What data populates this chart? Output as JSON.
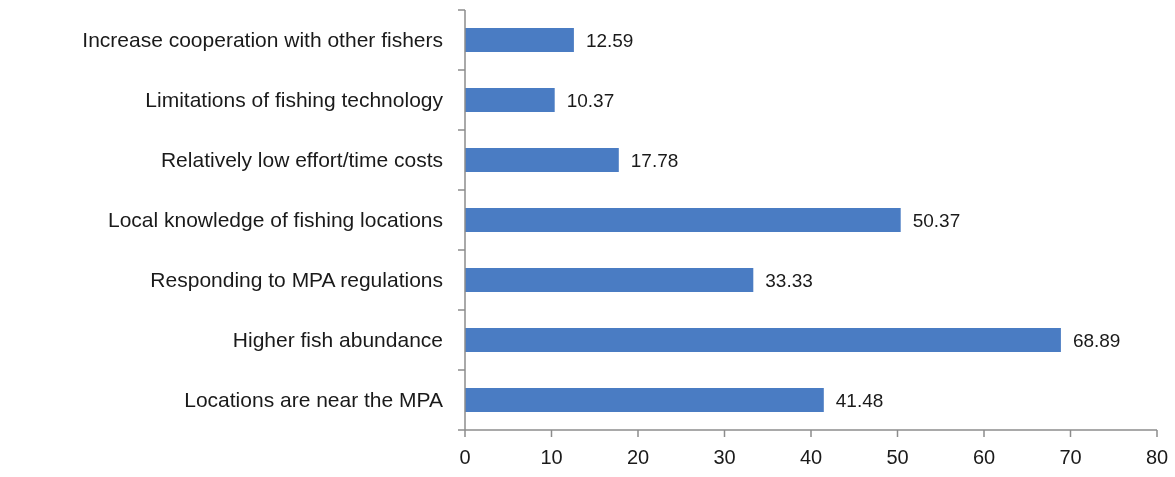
{
  "chart_data": {
    "type": "bar",
    "orientation": "horizontal",
    "categories": [
      "Increase cooperation with other fishers",
      "Limitations of fishing technology",
      "Relatively low effort/time costs",
      "Local knowledge of fishing locations",
      "Responding to MPA regulations",
      "Higher fish abundance",
      "Locations are near the MPA"
    ],
    "values": [
      12.59,
      10.37,
      17.78,
      50.37,
      33.33,
      68.89,
      41.48
    ],
    "color": "#4a7cc3",
    "xlim": [
      0,
      80
    ],
    "xticks": [
      0,
      10,
      20,
      30,
      40,
      50,
      60,
      70,
      80
    ],
    "data_labels": true
  }
}
